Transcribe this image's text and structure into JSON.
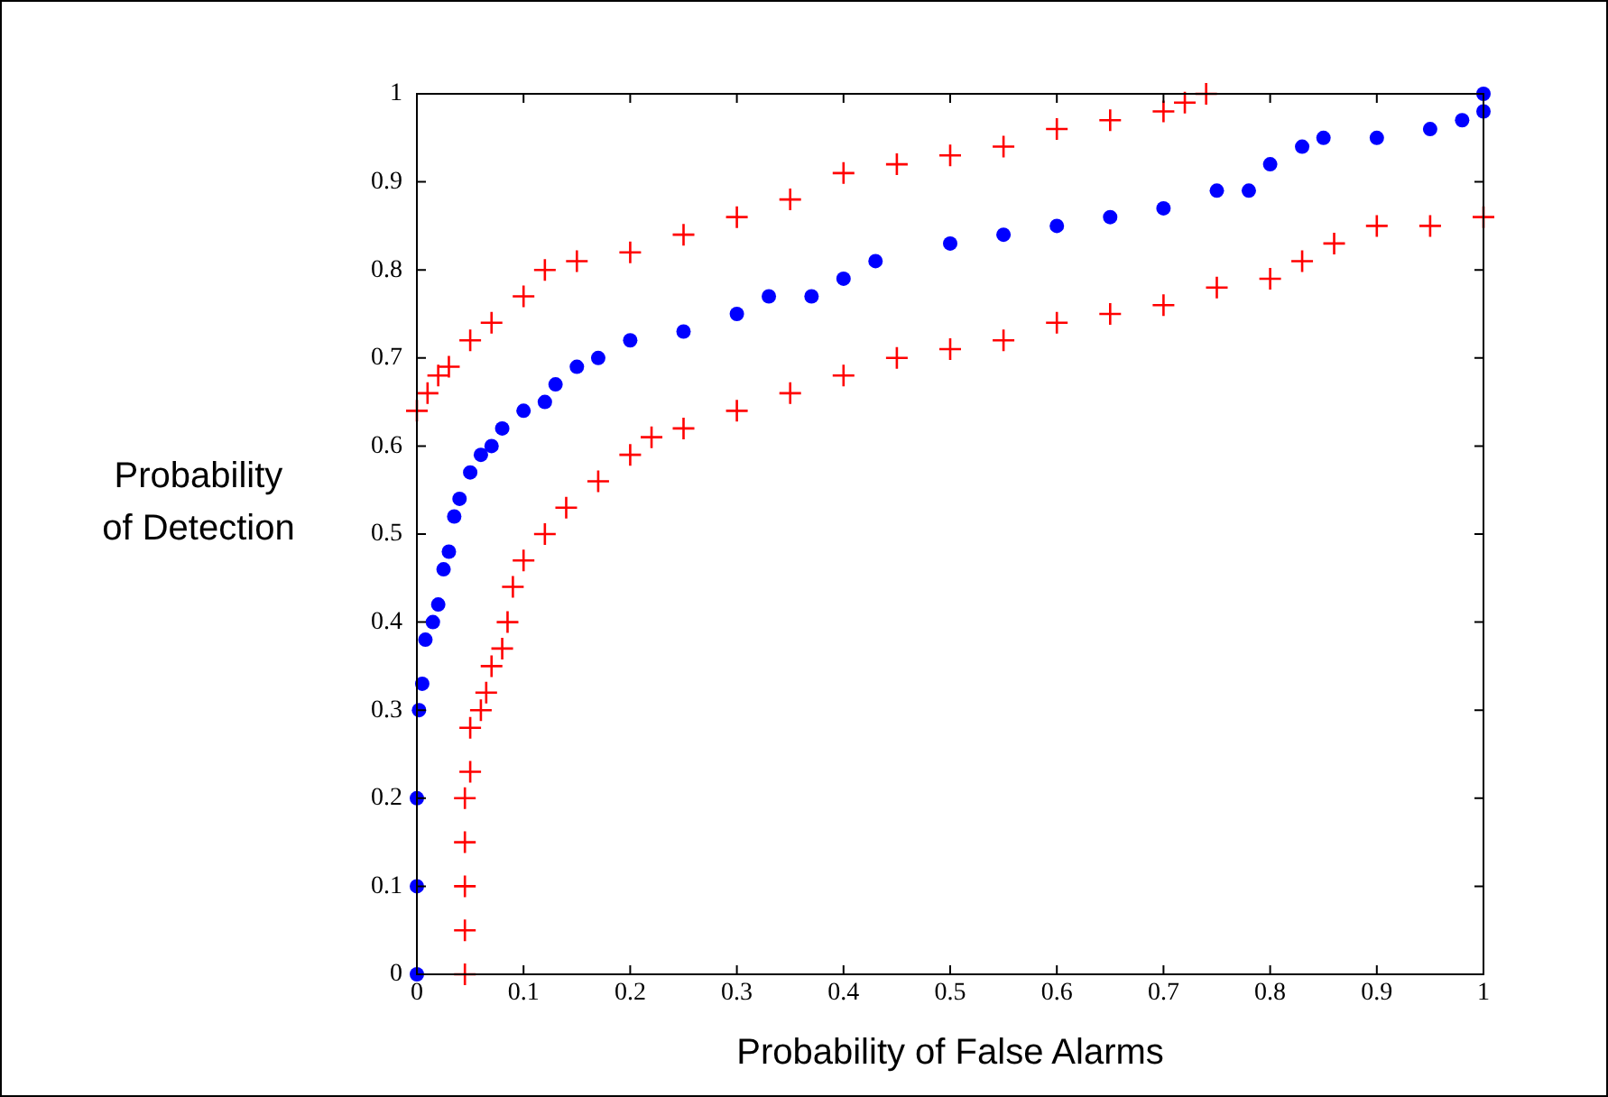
{
  "chart_data": {
    "type": "scatter",
    "xlabel": "Probability of False Alarms",
    "ylabel": "Probability of Detection",
    "xlim": [
      0,
      1
    ],
    "ylim": [
      0,
      1
    ],
    "xticks": [
      0,
      0.1,
      0.2,
      0.3,
      0.4,
      0.5,
      0.6,
      0.7,
      0.8,
      0.9,
      1
    ],
    "yticks": [
      0,
      0.1,
      0.2,
      0.3,
      0.4,
      0.5,
      0.6,
      0.7,
      0.8,
      0.9,
      1
    ],
    "grid": false,
    "legend": false,
    "series": [
      {
        "color": "#ff0000",
        "marker": "cross",
        "x": [
          0,
          0.01,
          0.02,
          0.03,
          0.05,
          0.07,
          0.1,
          0.12,
          0.15,
          0.2,
          0.25,
          0.3,
          0.35,
          0.4,
          0.45,
          0.5,
          0.55,
          0.6,
          0.65,
          0.7,
          0.72,
          0.74
        ],
        "values": [
          0.64,
          0.66,
          0.68,
          0.69,
          0.72,
          0.74,
          0.77,
          0.8,
          0.81,
          0.82,
          0.84,
          0.86,
          0.88,
          0.91,
          0.92,
          0.93,
          0.94,
          0.96,
          0.97,
          0.98,
          0.99,
          1
        ]
      },
      {
        "color": "#0000ff",
        "marker": "circle",
        "x": [
          0,
          0,
          0,
          0.002,
          0.005,
          0.008,
          0.015,
          0.02,
          0.025,
          0.03,
          0.035,
          0.04,
          0.05,
          0.06,
          0.07,
          0.08,
          0.1,
          0.12,
          0.13,
          0.15,
          0.17,
          0.2,
          0.25,
          0.3,
          0.33,
          0.37,
          0.4,
          0.43,
          0.5,
          0.55,
          0.6,
          0.65,
          0.7,
          0.75,
          0.78,
          0.8,
          0.83,
          0.85,
          0.9,
          0.95,
          0.98,
          1,
          1
        ],
        "values": [
          0,
          0.1,
          0.2,
          0.3,
          0.33,
          0.38,
          0.4,
          0.42,
          0.46,
          0.48,
          0.52,
          0.54,
          0.57,
          0.59,
          0.6,
          0.62,
          0.64,
          0.65,
          0.67,
          0.69,
          0.7,
          0.72,
          0.73,
          0.75,
          0.77,
          0.77,
          0.79,
          0.81,
          0.83,
          0.84,
          0.85,
          0.86,
          0.87,
          0.89,
          0.89,
          0.92,
          0.94,
          0.95,
          0.95,
          0.96,
          0.97,
          0.98,
          1
        ]
      },
      {
        "color": "#ff0000",
        "marker": "cross",
        "x": [
          0.045,
          0.045,
          0.045,
          0.045,
          0.045,
          0.05,
          0.05,
          0.06,
          0.065,
          0.07,
          0.08,
          0.085,
          0.09,
          0.1,
          0.12,
          0.14,
          0.17,
          0.2,
          0.22,
          0.25,
          0.3,
          0.35,
          0.4,
          0.45,
          0.5,
          0.55,
          0.6,
          0.65,
          0.7,
          0.75,
          0.8,
          0.83,
          0.86,
          0.9,
          0.95,
          1
        ],
        "values": [
          0,
          0.05,
          0.1,
          0.15,
          0.2,
          0.23,
          0.28,
          0.3,
          0.32,
          0.35,
          0.37,
          0.4,
          0.44,
          0.47,
          0.5,
          0.53,
          0.56,
          0.59,
          0.61,
          0.62,
          0.64,
          0.66,
          0.68,
          0.7,
          0.71,
          0.72,
          0.74,
          0.75,
          0.76,
          0.78,
          0.79,
          0.81,
          0.83,
          0.85,
          0.85,
          0.86
        ]
      }
    ]
  }
}
